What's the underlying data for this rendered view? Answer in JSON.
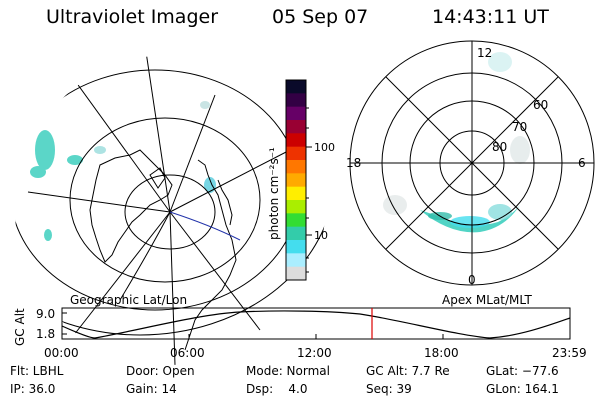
{
  "header": {
    "instrument": "Ultraviolet Imager",
    "date": "05 Sep 07",
    "time": "14:43:11 UT"
  },
  "left_panel": {
    "label": "Geographic Lat/Lon"
  },
  "right_panel": {
    "label": "Apex MLat/MLT",
    "lat_labels": [
      "60",
      "70",
      "80"
    ],
    "mlt_labels": {
      "top": "12",
      "left": "18",
      "right": "6",
      "bottom": "0"
    }
  },
  "colorbar": {
    "unit_label": "photon cm⁻²s⁻¹",
    "tick_labels": [
      "100",
      "10"
    ],
    "colors": [
      "#0a0a2a",
      "#330044",
      "#660066",
      "#990033",
      "#cc0000",
      "#ee3300",
      "#ff7700",
      "#ffaa00",
      "#ffee00",
      "#aaee00",
      "#33dd33",
      "#33ccaa",
      "#44ddee",
      "#aaeeff",
      "#dddddd"
    ]
  },
  "altitude_plot": {
    "ylabel": "GC Alt",
    "y_ticks": [
      "9.0",
      "1.8"
    ],
    "x_ticks": [
      "00:00",
      "06:00",
      "12:00",
      "18:00",
      "23:59"
    ],
    "current_time_color": "#dd0000"
  },
  "info": {
    "filter": "Flt: LBHL",
    "door": "Door: Open",
    "mode": "Mode: Normal",
    "gc_alt": "GC Alt: 7.7 Re",
    "glat": "GLat: −77.6",
    "ip": "IP: 36.0",
    "gain": "Gain: 14",
    "dsp": "Dsp:    4.0",
    "seq": "Seq: 39",
    "glon": "GLon: 164.1"
  }
}
